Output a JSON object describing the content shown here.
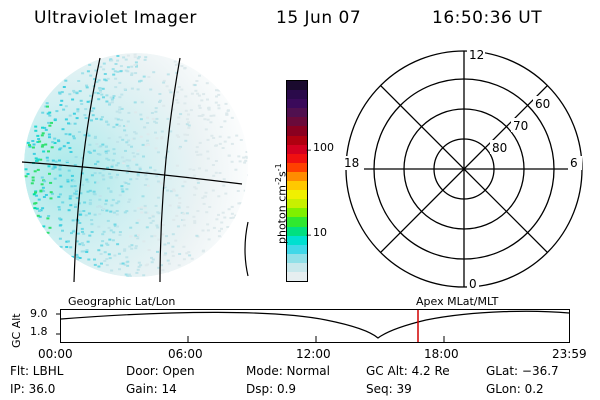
{
  "header": {
    "title": "Ultraviolet Imager",
    "date": "15 Jun 07",
    "time": "16:50:36 UT"
  },
  "colorbar": {
    "unit": "photon cm",
    "unit_exp1": "-2",
    "unit_s": "s",
    "unit_exp2": "-1",
    "ticks": [
      "100",
      "10"
    ],
    "colors": [
      "#1a0a2e",
      "#2a0a4a",
      "#3a0a5a",
      "#50104f",
      "#6a0a3a",
      "#8a0020",
      "#b00010",
      "#d40020",
      "#f01010",
      "#ff4000",
      "#ff8c00",
      "#ffc800",
      "#f0f000",
      "#c8f000",
      "#80f000",
      "#30e830",
      "#00e080",
      "#00e0d0",
      "#40d8e8",
      "#90e0e8",
      "#c8e8ec",
      "#e6eef0"
    ]
  },
  "polar": {
    "labels": {
      "top": "12",
      "left": "18",
      "right": "6",
      "bottom": "0"
    },
    "lat_labels": [
      "60",
      "70",
      "80"
    ]
  },
  "timeline": {
    "left_label": "Geographic Lat/Lon",
    "right_label": "Apex MLat/MLT",
    "axis_title": "GC Alt",
    "y_ticks": [
      "9.0",
      "1.8"
    ],
    "x_ticks": [
      "00:00",
      "06:00",
      "12:00",
      "18:00",
      "23:59"
    ]
  },
  "footer": {
    "rows": [
      [
        "Flt: LBHL",
        "Door: Open",
        "Mode: Normal",
        "GC Alt: 4.2 Re",
        "GLat: −36.7"
      ],
      [
        "IP: 36.0",
        "Gain: 14",
        "Dsp:      0.9",
        "Seq: 39",
        "GLon:    0.2"
      ]
    ]
  }
}
